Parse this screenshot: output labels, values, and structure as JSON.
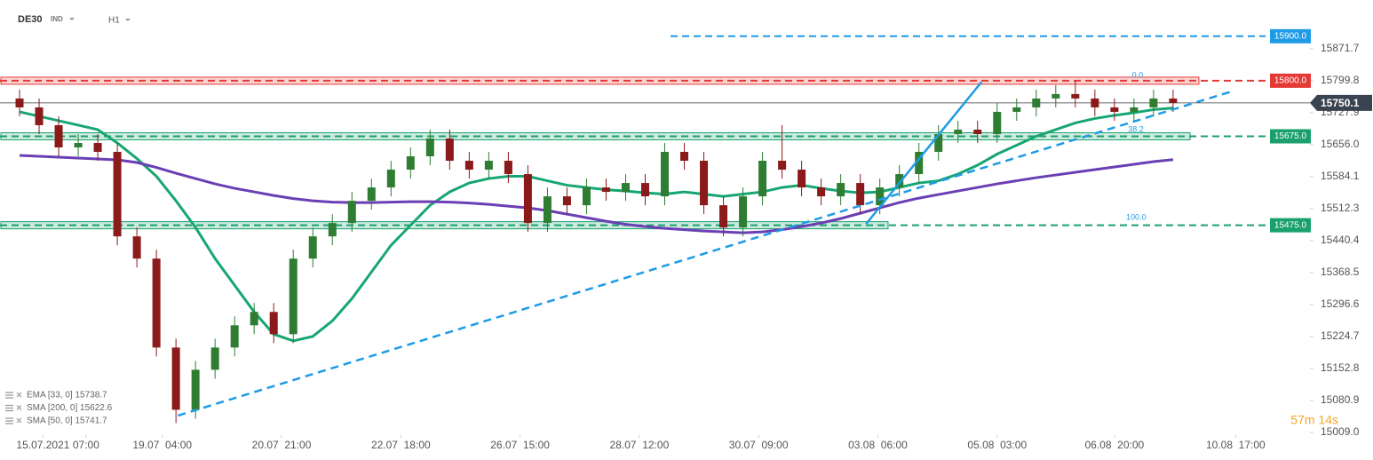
{
  "chart_data": {
    "type": "candlestick",
    "symbol": "DE30",
    "market": "IND",
    "interval": "H1",
    "countdown": "57m 14s",
    "xlim": [
      -1,
      66
    ],
    "ylim": [
      15003,
      15981.5
    ],
    "xticks": [
      {
        "value": 1.2,
        "label": "15.07.2021"
      },
      {
        "value": 3.4,
        "label": "07:00"
      },
      {
        "value": 7.3,
        "label": "19.07  04:00"
      },
      {
        "value": 13.4,
        "label": "20.07  21:00"
      },
      {
        "value": 19.5,
        "label": "22.07  18:00"
      },
      {
        "value": 25.6,
        "label": "26.07  15:00"
      },
      {
        "value": 31.7,
        "label": "28.07  12:00"
      },
      {
        "value": 37.8,
        "label": "30.07  09:00"
      },
      {
        "value": 43.9,
        "label": "03.08  06:00"
      },
      {
        "value": 50,
        "label": "05.08  03:00"
      },
      {
        "value": 56,
        "label": "06.08  20:00"
      },
      {
        "value": 62.2,
        "label": "10.08  17:00"
      }
    ],
    "yticks": [
      15871.7,
      15799.8,
      15727.9,
      {
        "value": 15656,
        "label": "15656.0"
      },
      15584.1,
      15512.3,
      15440.4,
      15368.5,
      15296.6,
      15224.7,
      15152.8,
      15080.9,
      {
        "value": 15009,
        "label": "15009.0"
      }
    ],
    "up_color": "#2e7d32",
    "down_color": "#8b1a1a",
    "open": [
      15760,
      15740,
      15700,
      15650,
      15660,
      15640,
      15450,
      15400,
      15200,
      15060,
      15150,
      15200,
      15250,
      15280,
      15230,
      15400,
      15450,
      15480,
      15530,
      15560,
      15600,
      15630,
      15670,
      15620,
      15600,
      15620,
      15590,
      15480,
      15540,
      15520,
      15560,
      15550,
      15570,
      15540,
      15640,
      15620,
      15520,
      15470,
      15540,
      15620,
      15600,
      15560,
      15540,
      15570,
      15520,
      15560,
      15590,
      15640,
      15680,
      15690,
      15680,
      15730,
      15740,
      15760,
      15770,
      15760,
      15740,
      15730,
      15740,
      15760
    ],
    "high": [
      15780,
      15760,
      15720,
      15680,
      15680,
      15660,
      15470,
      15420,
      15220,
      15170,
      15220,
      15270,
      15300,
      15300,
      15420,
      15470,
      15500,
      15550,
      15580,
      15620,
      15650,
      15690,
      15690,
      15640,
      15640,
      15640,
      15610,
      15560,
      15560,
      15580,
      15580,
      15590,
      15590,
      15660,
      15660,
      15640,
      15540,
      15560,
      15640,
      15700,
      15620,
      15580,
      15590,
      15590,
      15580,
      15610,
      15660,
      15700,
      15710,
      15710,
      15750,
      15760,
      15780,
      15790,
      15800,
      15780,
      15760,
      15760,
      15780,
      15780
    ],
    "low": [
      15720,
      15680,
      15630,
      15630,
      15620,
      15430,
      15380,
      15180,
      15030,
      15040,
      15130,
      15180,
      15230,
      15210,
      15210,
      15380,
      15430,
      15460,
      15510,
      15540,
      15580,
      15610,
      15600,
      15580,
      15580,
      15570,
      15460,
      15460,
      15500,
      15500,
      15530,
      15530,
      15520,
      15520,
      15600,
      15500,
      15450,
      15450,
      15520,
      15580,
      15540,
      15520,
      15520,
      15500,
      15500,
      15540,
      15570,
      15620,
      15660,
      15660,
      15660,
      15710,
      15720,
      15740,
      15740,
      15720,
      15710,
      15710,
      15720,
      15730
    ],
    "close": [
      15740,
      15700,
      15650,
      15660,
      15640,
      15450,
      15400,
      15200,
      15060,
      15150,
      15200,
      15250,
      15280,
      15230,
      15400,
      15450,
      15480,
      15530,
      15560,
      15600,
      15630,
      15670,
      15620,
      15600,
      15620,
      15590,
      15480,
      15540,
      15520,
      15560,
      15550,
      15570,
      15540,
      15640,
      15620,
      15520,
      15470,
      15540,
      15620,
      15600,
      15560,
      15540,
      15570,
      15520,
      15560,
      15590,
      15640,
      15680,
      15690,
      15680,
      15730,
      15740,
      15760,
      15770,
      15760,
      15740,
      15730,
      15740,
      15760,
      15750.1
    ],
    "ma_lines": [
      {
        "color": "#17a673",
        "values": [
          15730,
          15720,
          15710,
          15700,
          15690,
          15660,
          15625,
          15585,
          15530,
          15470,
          15400,
          15340,
          15280,
          15230,
          15215,
          15225,
          15260,
          15310,
          15370,
          15430,
          15475,
          15520,
          15550,
          15570,
          15580,
          15585,
          15585,
          15575,
          15565,
          15560,
          15555,
          15552,
          15548,
          15545,
          15550,
          15545,
          15540,
          15545,
          15550,
          15560,
          15565,
          15558,
          15552,
          15548,
          15550,
          15560,
          15570,
          15575,
          15590,
          15610,
          15635,
          15655,
          15675,
          15690,
          15705,
          15715,
          15722,
          15728,
          15735,
          15738.7
        ]
      },
      {
        "color": "#6a3fb5",
        "values": [
          15632,
          15630,
          15628,
          15626,
          15624,
          15622,
          15616,
          15605,
          15592,
          15580,
          15568,
          15558,
          15550,
          15542,
          15535,
          15530,
          15527,
          15526,
          15526,
          15527,
          15528,
          15528,
          15527,
          15525,
          15522,
          15518,
          15514,
          15508,
          15500,
          15492,
          15484,
          15477,
          15472,
          15468,
          15465,
          15462,
          15460,
          15458,
          15460,
          15465,
          15472,
          15480,
          15490,
          15502,
          15514,
          15526,
          15536,
          15544,
          15552,
          15560,
          15568,
          15575,
          15582,
          15588,
          15594,
          15600,
          15606,
          15612,
          15618,
          15622.6
        ]
      }
    ],
    "indicators": [
      "EMA [33, 0] 15738.7",
      "SMA [200, 0] 15622.6",
      "SMA [50, 0] 15741.7"
    ],
    "levels": [
      {
        "value": 15900,
        "label": "15900.0",
        "color": "#1e9be6"
      },
      {
        "value": 15800,
        "label": "15800.0",
        "color": "#e53935"
      },
      {
        "value": 15675,
        "label": "15675.0",
        "color": "#1aa06d"
      },
      {
        "value": 15475,
        "label": "15475.0",
        "color": "#1aa06d"
      }
    ],
    "current_price": 15750.1,
    "trendlines": [
      {
        "x": [
          8.1,
          62
        ],
        "y": [
          15047,
          15776
        ],
        "color": "#1e9be6",
        "dashed": true
      },
      {
        "x": [
          43.3,
          49.2
        ],
        "y": [
          15478,
          15797
        ],
        "color": "#1e9be6",
        "dashed": false
      }
    ],
    "fib_labels": [
      {
        "text": "0.0",
        "x": 56.9,
        "y": 15812
      },
      {
        "text": "38.2",
        "x": 56.7,
        "y": 15690
      },
      {
        "text": "100.0",
        "x": 56.6,
        "y": 15492
      }
    ]
  }
}
